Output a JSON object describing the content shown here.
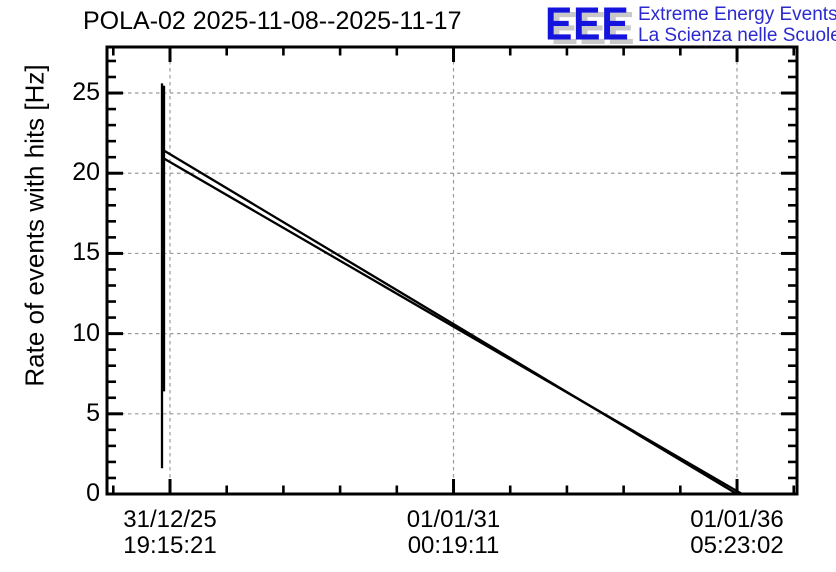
{
  "header": {
    "title": "POLA-02 2025-11-08--2025-11-17",
    "logo": {
      "letters": "EEE",
      "subtitle_line1": "Extreme Energy Events",
      "subtitle_line2": "La Scienza nelle Scuole",
      "letters_color": "#1414dd",
      "letters_shadow_color": "#c9c9c9",
      "subtitle_color": "#2a2ad0"
    }
  },
  "chart_data": {
    "type": "line",
    "title": "POLA-02 2025-11-08--2025-11-17",
    "xlabel": "",
    "ylabel": "Rate of events with hits [Hz]",
    "ylim": [
      0,
      27.87
    ],
    "y_major_ticks": [
      0,
      5,
      10,
      15,
      20,
      25
    ],
    "y_minor_step_hz": 1,
    "x_ticks": [
      {
        "frac": 0.0913,
        "date": "31/12/25",
        "time": "19:15:21"
      },
      {
        "frac": 0.5022,
        "date": "01/01/31",
        "time": "00:19:11"
      },
      {
        "frac": 0.913,
        "date": "01/01/36",
        "time": "05:23:02"
      }
    ],
    "x_minor_per_major": 5,
    "grid": {
      "shown": true,
      "dashed": true,
      "color": "#9a9a9a"
    },
    "line_color": "#000000",
    "series": [
      {
        "name": "spike-main",
        "points_fx_hz": [
          [
            0.0797,
            25.6
          ],
          [
            0.0797,
            1.6
          ]
        ]
      },
      {
        "name": "spike-thick",
        "points_fx_hz": [
          [
            0.0826,
            25.45
          ],
          [
            0.0826,
            6.4
          ]
        ]
      },
      {
        "name": "decay-line-upper",
        "points_fx_hz": [
          [
            0.0812,
            21.45
          ],
          [
            0.913,
            0.0
          ]
        ]
      },
      {
        "name": "decay-line-lower",
        "points_fx_hz": [
          [
            0.0812,
            20.95
          ],
          [
            0.9203,
            0.0
          ]
        ]
      }
    ]
  }
}
